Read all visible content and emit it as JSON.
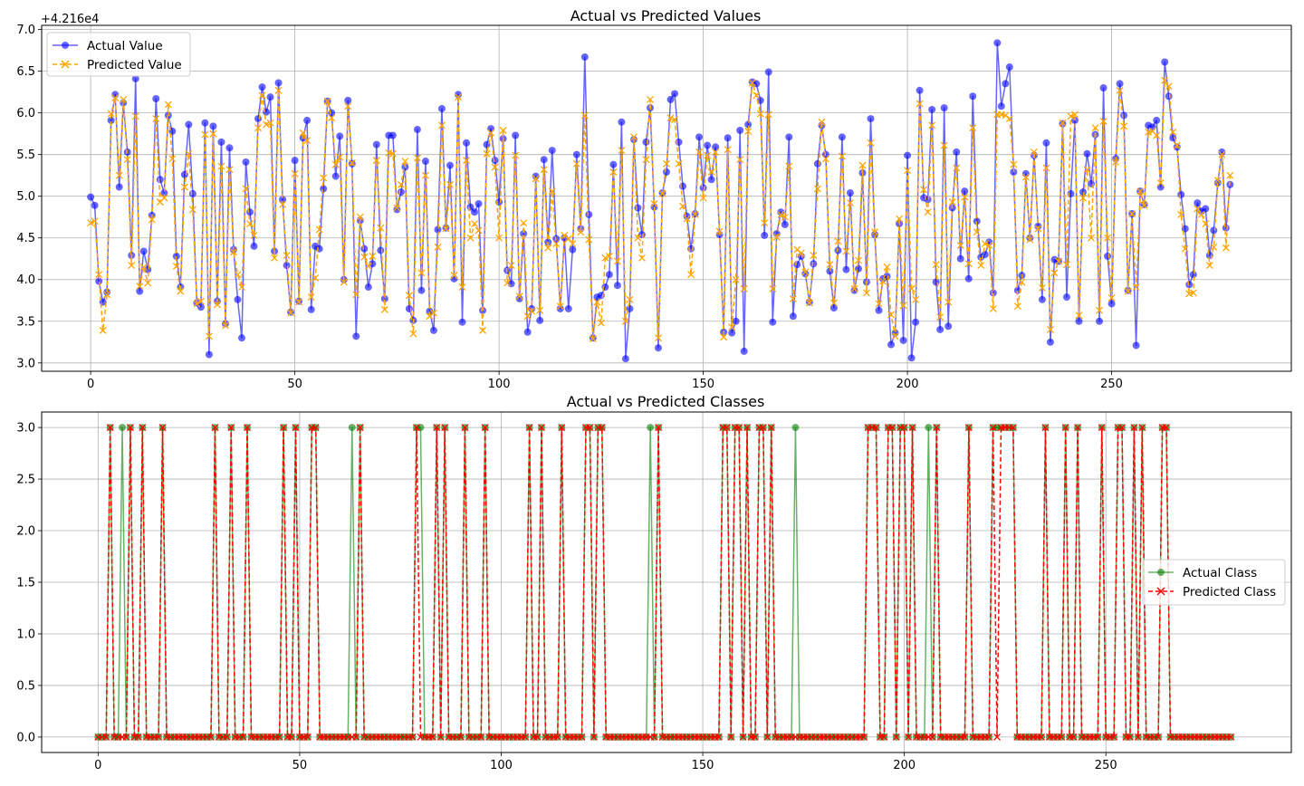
{
  "charts": [
    {
      "type": "line",
      "title": "Actual vs Predicted Values",
      "offset_text": "+4.216e4",
      "xlim": [
        -12,
        294
      ],
      "ylim": [
        2.9,
        7.05
      ],
      "xticks": [
        0,
        50,
        100,
        150,
        200,
        250
      ],
      "yticks": [
        3.0,
        3.5,
        4.0,
        4.5,
        5.0,
        5.5,
        6.0,
        6.5,
        7.0
      ],
      "ytick_labels": [
        "3.0",
        "3.5",
        "4.0",
        "4.5",
        "5.0",
        "5.5",
        "6.0",
        "6.5",
        "7.0"
      ],
      "grid": true,
      "legend_position": "upper-left",
      "series": [
        {
          "name": "Actual Value",
          "color": "#0000ff",
          "alpha": 0.6,
          "marker": "circle",
          "linestyle": "solid",
          "values": [
            4.99,
            4.89,
            3.98,
            3.73,
            3.85,
            5.91,
            6.22,
            5.11,
            6.12,
            5.53,
            4.29,
            6.41,
            3.86,
            4.34,
            4.12,
            4.77,
            6.17,
            5.2,
            5.04,
            5.97,
            5.78,
            4.28,
            3.91,
            5.26,
            5.86,
            5.03,
            3.72,
            3.67,
            5.88,
            3.1,
            5.84,
            3.74,
            5.65,
            3.47,
            5.58,
            4.36,
            3.76,
            3.3,
            5.41,
            4.81,
            4.4,
            5.93,
            6.31,
            6.01,
            6.19,
            4.34,
            6.36,
            4.96,
            4.17,
            3.61,
            5.43,
            3.74,
            5.7,
            5.91,
            3.64,
            4.4,
            4.37,
            5.09,
            6.14,
            6.0,
            5.24,
            5.72,
            4.0,
            6.15,
            5.39,
            3.32,
            4.71,
            4.37,
            3.91,
            4.19,
            5.62,
            4.35,
            3.77,
            5.73,
            5.73,
            4.84,
            5.05,
            5.35,
            3.65,
            3.51,
            5.8,
            3.87,
            5.42,
            3.62,
            3.39,
            4.6,
            6.05,
            4.62,
            5.37,
            4.01,
            6.22,
            3.49,
            5.64,
            4.87,
            4.81,
            4.91,
            3.63,
            5.62,
            5.81,
            5.43,
            4.93,
            5.69,
            4.11,
            3.95,
            5.73,
            3.77,
            4.55,
            3.37,
            3.65,
            5.24,
            3.51,
            5.44,
            4.45,
            5.55,
            4.49,
            3.65,
            4.5,
            3.65,
            4.36,
            5.5,
            4.61,
            6.67,
            4.78,
            3.3,
            3.79,
            3.81,
            3.91,
            4.06,
            5.38,
            3.93,
            5.89,
            3.05,
            3.65,
            5.68,
            4.86,
            4.54,
            5.65,
            6.06,
            4.87,
            3.18,
            5.04,
            5.29,
            6.16,
            6.23,
            5.65,
            5.12,
            4.76,
            4.37,
            4.79,
            5.71,
            5.1,
            5.61,
            5.2,
            5.59,
            4.54,
            3.37,
            5.7,
            3.36,
            3.5,
            5.79,
            3.14,
            5.86,
            6.37,
            6.35,
            6.15,
            4.53,
            6.49,
            3.49,
            4.55,
            4.81,
            4.66,
            5.71,
            3.56,
            4.18,
            4.28,
            4.07,
            3.73,
            4.19,
            5.39,
            5.85,
            5.5,
            4.1,
            3.66,
            4.35,
            5.71,
            4.12,
            5.04,
            3.87,
            4.13,
            5.28,
            3.97,
            5.93,
            4.54,
            3.63,
            4.01,
            4.04,
            3.22,
            3.36,
            4.67,
            3.27,
            5.49,
            3.06,
            3.49,
            6.27,
            4.98,
            4.96,
            6.04,
            3.97,
            3.4,
            6.06,
            3.44,
            4.86,
            5.53,
            4.25,
            5.06,
            4.01,
            6.2,
            4.7,
            4.27,
            4.3,
            4.45,
            3.84,
            6.84,
            6.08,
            6.35,
            6.55,
            5.29,
            3.87,
            4.05,
            5.27,
            4.5,
            5.49,
            4.64,
            3.76,
            5.64,
            3.25,
            4.24,
            4.22,
            5.87,
            3.79,
            5.03,
            5.91,
            3.5,
            5.05,
            5.51,
            5.15,
            5.74,
            3.5,
            6.3,
            4.28,
            3.71,
            5.45,
            6.35,
            5.97,
            3.87,
            4.79,
            3.21,
            5.06,
            4.9,
            5.85,
            5.83,
            5.91,
            5.11,
            6.61,
            6.2,
            5.7,
            5.59,
            5.02,
            4.61,
            3.94,
            4.06,
            4.92,
            4.82,
            4.85,
            4.29,
            4.59,
            5.16,
            5.53,
            4.62,
            5.14
          ]
        },
        {
          "name": "Predicted Value",
          "color": "#ffa500",
          "alpha": 1.0,
          "marker": "x",
          "linestyle": "dashed",
          "values": [
            4.68,
            4.7,
            4.06,
            3.39,
            3.82,
            5.99,
            6.18,
            5.25,
            6.16,
            5.44,
            4.17,
            5.96,
            3.92,
            4.15,
            3.96,
            4.72,
            5.93,
            4.93,
            4.98,
            6.1,
            5.45,
            4.16,
            3.86,
            5.11,
            5.51,
            4.84,
            3.71,
            3.74,
            5.74,
            3.32,
            5.75,
            3.7,
            5.36,
            3.45,
            5.32,
            4.33,
            4.06,
            3.91,
            5.09,
            4.67,
            4.53,
            5.82,
            6.21,
            5.86,
            5.88,
            4.26,
            6.27,
            4.9,
            4.29,
            3.6,
            5.27,
            3.73,
            5.76,
            5.67,
            3.79,
            4.02,
            4.6,
            5.22,
            6.14,
            5.94,
            5.38,
            5.47,
            3.97,
            6.08,
            5.4,
            3.82,
            4.75,
            4.27,
            4.16,
            4.28,
            5.43,
            4.62,
            3.64,
            5.52,
            5.51,
            4.86,
            5.14,
            5.42,
            3.81,
            3.35,
            5.46,
            4.08,
            5.25,
            3.56,
            3.6,
            4.39,
            5.85,
            4.61,
            5.14,
            4.05,
            6.19,
            3.91,
            5.43,
            4.5,
            4.67,
            4.59,
            3.39,
            5.51,
            5.76,
            5.35,
            4.5,
            5.79,
            3.96,
            4.17,
            5.49,
            3.8,
            4.68,
            3.56,
            3.62,
            5.21,
            3.63,
            5.32,
            4.38,
            5.06,
            4.43,
            3.68,
            4.53,
            4.49,
            4.43,
            5.39,
            4.57,
            5.97,
            4.48,
            3.29,
            3.73,
            3.48,
            4.26,
            4.28,
            5.29,
            4.22,
            5.55,
            3.5,
            3.76,
            5.71,
            4.5,
            4.26,
            5.44,
            6.16,
            4.91,
            3.3,
            5.03,
            5.39,
            5.94,
            5.92,
            5.39,
            4.88,
            4.73,
            4.06,
            4.78,
            5.53,
            4.98,
            5.49,
            5.29,
            5.53,
            4.58,
            3.31,
            5.56,
            3.43,
            4.0,
            5.44,
            3.89,
            5.78,
            6.36,
            6.21,
            5.99,
            4.68,
            5.98,
            3.89,
            4.51,
            4.78,
            4.75,
            5.36,
            3.77,
            4.36,
            4.32,
            4.09,
            3.72,
            4.29,
            5.09,
            5.89,
            5.45,
            4.18,
            3.72,
            4.46,
            5.48,
            4.34,
            4.92,
            3.89,
            4.23,
            5.37,
            3.84,
            5.64,
            4.57,
            3.71,
            3.98,
            4.15,
            3.58,
            3.32,
            4.73,
            3.69,
            5.31,
            3.89,
            3.76,
            6.11,
            5.08,
            4.81,
            5.85,
            4.18,
            3.55,
            5.61,
            3.73,
            4.93,
            5.34,
            4.41,
            4.99,
            4.19,
            5.82,
            4.57,
            4.17,
            4.43,
            4.41,
            3.65,
            5.98,
            5.98,
            5.97,
            5.93,
            5.38,
            3.68,
            3.97,
            5.23,
            4.48,
            5.53,
            4.61,
            3.9,
            5.34,
            3.4,
            4.08,
            4.22,
            5.88,
            4.18,
            5.96,
            5.98,
            3.57,
            4.98,
            5.32,
            4.5,
            5.82,
            3.63,
            5.9,
            4.5,
            3.78,
            5.41,
            6.27,
            5.84,
            3.86,
            4.79,
            3.91,
            5.06,
            4.89,
            5.77,
            5.78,
            5.73,
            5.16,
            6.39,
            6.32,
            5.77,
            5.61,
            4.78,
            4.37,
            3.83,
            3.84,
            4.85,
            4.78,
            4.67,
            4.17,
            4.39,
            5.19,
            5.5,
            4.38,
            5.25
          ]
        }
      ]
    },
    {
      "type": "line",
      "title": "Actual vs Predicted Classes",
      "xlim": [
        -14,
        296
      ],
      "ylim": [
        -0.15,
        3.15
      ],
      "xticks": [
        0,
        50,
        100,
        150,
        200,
        250
      ],
      "yticks": [
        0,
        0.5,
        1.0,
        1.5,
        2.0,
        2.5,
        3.0
      ],
      "ytick_labels": [
        "0.0",
        "0.5",
        "1.0",
        "1.5",
        "2.0",
        "2.5",
        "3.0"
      ],
      "grid": true,
      "legend_position": "center-right",
      "n_points": 282,
      "series": [
        {
          "name": "Actual Class",
          "color": "#008000",
          "alpha": 0.6,
          "marker": "circle",
          "linestyle": "solid",
          "high_indices": [
            3,
            6,
            8,
            11,
            16,
            29,
            33,
            37,
            46,
            49,
            53,
            54,
            63,
            65,
            79,
            80,
            84,
            86,
            91,
            96,
            107,
            110,
            115,
            121,
            122,
            124,
            125,
            137,
            139,
            155,
            156,
            158,
            159,
            161,
            164,
            165,
            167,
            173,
            191,
            192,
            193,
            196,
            197,
            199,
            200,
            202,
            206,
            208,
            216,
            222,
            223,
            224,
            225,
            226,
            227,
            235,
            240,
            243,
            249,
            253,
            254,
            257,
            259,
            264,
            265
          ]
        },
        {
          "name": "Predicted Class",
          "color": "#ff0000",
          "alpha": 1.0,
          "marker": "x",
          "linestyle": "dashed",
          "high_indices": [
            3,
            8,
            11,
            16,
            29,
            33,
            37,
            46,
            49,
            53,
            54,
            65,
            79,
            84,
            86,
            91,
            96,
            107,
            110,
            115,
            121,
            122,
            124,
            125,
            139,
            155,
            156,
            158,
            159,
            161,
            164,
            165,
            167,
            191,
            192,
            193,
            196,
            197,
            199,
            200,
            202,
            208,
            216,
            222,
            224,
            225,
            226,
            227,
            235,
            240,
            243,
            249,
            253,
            254,
            257,
            259,
            264,
            265
          ]
        }
      ]
    }
  ]
}
